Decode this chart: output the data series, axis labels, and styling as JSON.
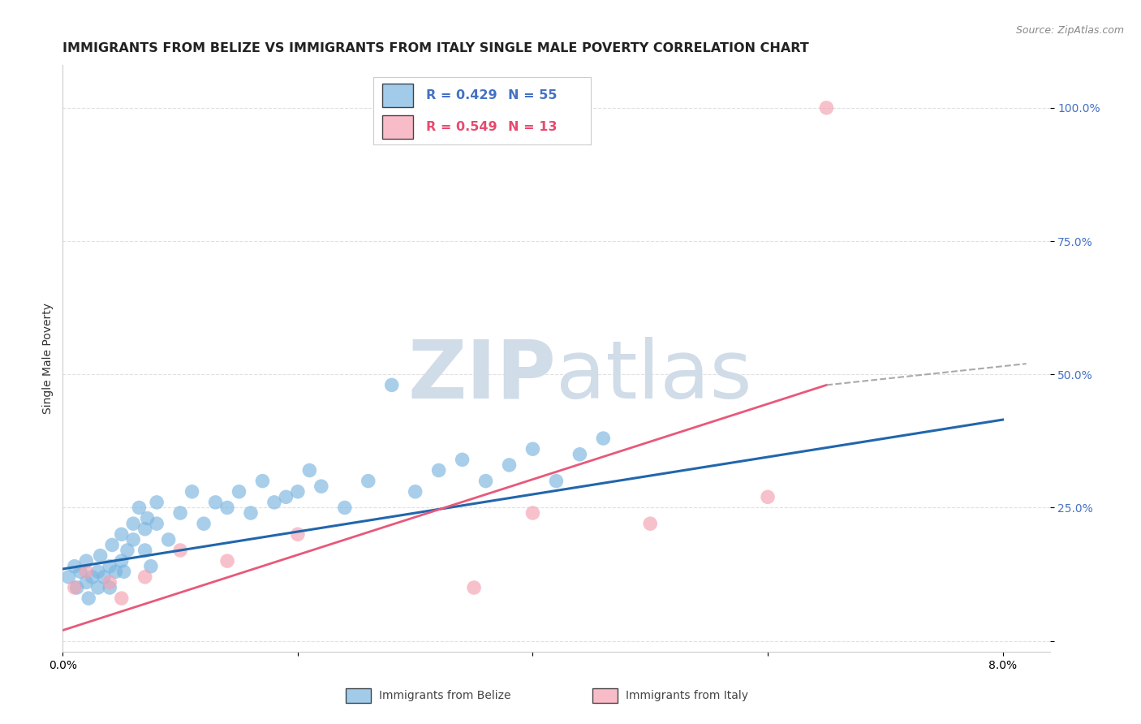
{
  "title": "IMMIGRANTS FROM BELIZE VS IMMIGRANTS FROM ITALY SINGLE MALE POVERTY CORRELATION CHART",
  "source": "Source: ZipAtlas.com",
  "ylabel": "Single Male Poverty",
  "xlim": [
    0.0,
    0.084
  ],
  "ylim": [
    -0.02,
    1.08
  ],
  "xticks": [
    0.0,
    0.02,
    0.04,
    0.06,
    0.08
  ],
  "xticklabels": [
    "0.0%",
    "",
    "",
    "",
    "8.0%"
  ],
  "yticks_right": [
    0.0,
    0.25,
    0.5,
    0.75,
    1.0
  ],
  "yticklabels_right": [
    "",
    "25.0%",
    "50.0%",
    "75.0%",
    "100.0%"
  ],
  "grid_color": "#e0e0e0",
  "background_color": "#ffffff",
  "belize_color": "#7ab5e0",
  "italy_color": "#f4a0b0",
  "belize_line_color": "#2166ac",
  "italy_line_color": "#e8587a",
  "dashed_color": "#aaaaaa",
  "belize_R": 0.429,
  "belize_N": 55,
  "italy_R": 0.549,
  "italy_N": 13,
  "belize_x": [
    0.0005,
    0.001,
    0.0012,
    0.0015,
    0.002,
    0.002,
    0.0022,
    0.0025,
    0.003,
    0.003,
    0.0032,
    0.0035,
    0.004,
    0.004,
    0.0042,
    0.0045,
    0.005,
    0.005,
    0.0052,
    0.0055,
    0.006,
    0.006,
    0.0065,
    0.007,
    0.007,
    0.0072,
    0.0075,
    0.008,
    0.008,
    0.009,
    0.01,
    0.011,
    0.012,
    0.013,
    0.014,
    0.015,
    0.016,
    0.017,
    0.018,
    0.019,
    0.02,
    0.021,
    0.022,
    0.024,
    0.026,
    0.028,
    0.03,
    0.032,
    0.034,
    0.036,
    0.038,
    0.04,
    0.042,
    0.044,
    0.046
  ],
  "belize_y": [
    0.12,
    0.14,
    0.1,
    0.13,
    0.11,
    0.15,
    0.08,
    0.12,
    0.13,
    0.1,
    0.16,
    0.12,
    0.14,
    0.1,
    0.18,
    0.13,
    0.2,
    0.15,
    0.13,
    0.17,
    0.22,
    0.19,
    0.25,
    0.21,
    0.17,
    0.23,
    0.14,
    0.26,
    0.22,
    0.19,
    0.24,
    0.28,
    0.22,
    0.26,
    0.25,
    0.28,
    0.24,
    0.3,
    0.26,
    0.27,
    0.28,
    0.32,
    0.29,
    0.25,
    0.3,
    0.48,
    0.28,
    0.32,
    0.34,
    0.3,
    0.33,
    0.36,
    0.3,
    0.35,
    0.38
  ],
  "italy_x": [
    0.001,
    0.002,
    0.004,
    0.005,
    0.007,
    0.01,
    0.014,
    0.02,
    0.035,
    0.04,
    0.05,
    0.06,
    0.065
  ],
  "italy_y": [
    0.1,
    0.13,
    0.11,
    0.08,
    0.12,
    0.17,
    0.15,
    0.2,
    0.1,
    0.24,
    0.22,
    0.27,
    1.0
  ],
  "belize_trend_x": [
    0.0,
    0.08
  ],
  "belize_trend_y": [
    0.135,
    0.415
  ],
  "italy_trend_x0": 0.0,
  "italy_trend_x_solid": 0.065,
  "italy_trend_x1": 0.082,
  "italy_trend_y0": 0.02,
  "italy_trend_y_solid": 0.48,
  "italy_trend_y1": 0.52,
  "watermark_zip": "ZIP",
  "watermark_atlas": "atlas",
  "watermark_color": "#d0dce8",
  "title_fontsize": 11.5,
  "axis_label_fontsize": 10,
  "tick_fontsize": 10,
  "source_fontsize": 9,
  "legend_R_color_belize": "#4472c4",
  "legend_R_color_italy": "#e84a6e"
}
